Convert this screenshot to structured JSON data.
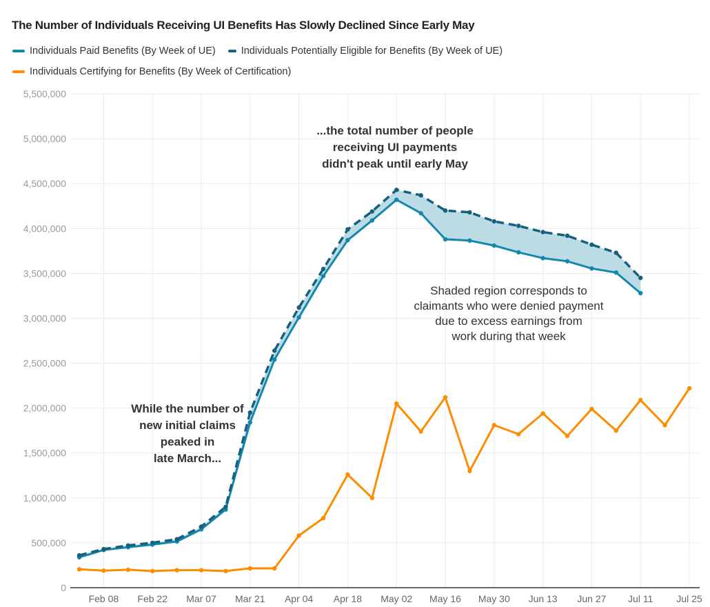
{
  "chart_data": {
    "type": "line",
    "title": "The Number of Individuals Receiving UI Benefits Has Slowly Declined Since Early May",
    "xlabel": "",
    "ylabel": "",
    "ylim": [
      0,
      5500000
    ],
    "y_ticks": [
      0,
      500000,
      1000000,
      1500000,
      2000000,
      2500000,
      3000000,
      3500000,
      4000000,
      4500000,
      5000000,
      5500000
    ],
    "y_tick_labels": [
      "0",
      "500,000",
      "1,000,000",
      "1,500,000",
      "2,000,000",
      "2,500,000",
      "3,000,000",
      "3,500,000",
      "4,000,000",
      "4,500,000",
      "5,000,000",
      "5,500,000"
    ],
    "x": [
      "Feb 01",
      "Feb 08",
      "Feb 15",
      "Feb 22",
      "Feb 29",
      "Mar 07",
      "Mar 14",
      "Mar 21",
      "Mar 28",
      "Apr 04",
      "Apr 11",
      "Apr 18",
      "Apr 25",
      "May 02",
      "May 09",
      "May 16",
      "May 23",
      "May 30",
      "Jun 06",
      "Jun 13",
      "Jun 20",
      "Jun 27",
      "Jul 04",
      "Jul 11",
      "Jul 18",
      "Jul 25"
    ],
    "x_tick_labels": [
      "Feb 08",
      "Feb 22",
      "Mar 07",
      "Mar 21",
      "Apr 04",
      "Apr 18",
      "May 02",
      "May 16",
      "May 30",
      "Jun 13",
      "Jun 27",
      "Jul 11",
      "Jul 25"
    ],
    "grid": true,
    "legend_position": "top-left",
    "series": [
      {
        "name": "Individuals Paid Benefits (By Week of UE)",
        "color": "#1487ad",
        "style": "solid",
        "values": [
          338000,
          420000,
          450000,
          480000,
          515000,
          650000,
          870000,
          1840000,
          2540000,
          3010000,
          3470000,
          3870000,
          4090000,
          4320000,
          4170000,
          3880000,
          3865000,
          3810000,
          3735000,
          3670000,
          3635000,
          3555000,
          3510000,
          3280000,
          null,
          null
        ]
      },
      {
        "name": "Individuals Potentially Eligible for Benefits (By Week of UE)",
        "color": "#17607d",
        "style": "dashed",
        "values": [
          360000,
          430000,
          470000,
          500000,
          540000,
          680000,
          900000,
          1950000,
          2640000,
          3120000,
          3550000,
          3990000,
          4190000,
          4430000,
          4370000,
          4200000,
          4180000,
          4080000,
          4030000,
          3960000,
          3920000,
          3820000,
          3730000,
          3450000,
          null,
          null
        ]
      },
      {
        "name": "Individuals Certifying for Benefits (By Week of Certification)",
        "color": "#ff8c00",
        "style": "solid",
        "values": [
          205000,
          190000,
          200000,
          185000,
          195000,
          195000,
          185000,
          215000,
          215000,
          580000,
          775000,
          1260000,
          1000000,
          2050000,
          1740000,
          2120000,
          1300000,
          1810000,
          1710000,
          1940000,
          1690000,
          1990000,
          1750000,
          2090000,
          1810000,
          2220000
        ]
      }
    ],
    "shaded_region": {
      "between": [
        "Individuals Paid Benefits (By Week of UE)",
        "Individuals Potentially Eligible for Benefits (By Week of UE)"
      ],
      "color": "#b7d9e4"
    },
    "annotations": [
      {
        "id": "late-march",
        "lines": [
          "While the number of",
          "new initial claims",
          "peaked in",
          "late March..."
        ],
        "bold": true
      },
      {
        "id": "early-may",
        "lines": [
          "...the total number of people",
          "receiving UI payments",
          "didn't peak until early May"
        ],
        "bold": true
      },
      {
        "id": "shaded",
        "lines": [
          "Shaded region corresponds to",
          "claimants who were denied payment",
          "due to excess earnings from",
          "work during that week"
        ],
        "bold": false
      }
    ]
  }
}
